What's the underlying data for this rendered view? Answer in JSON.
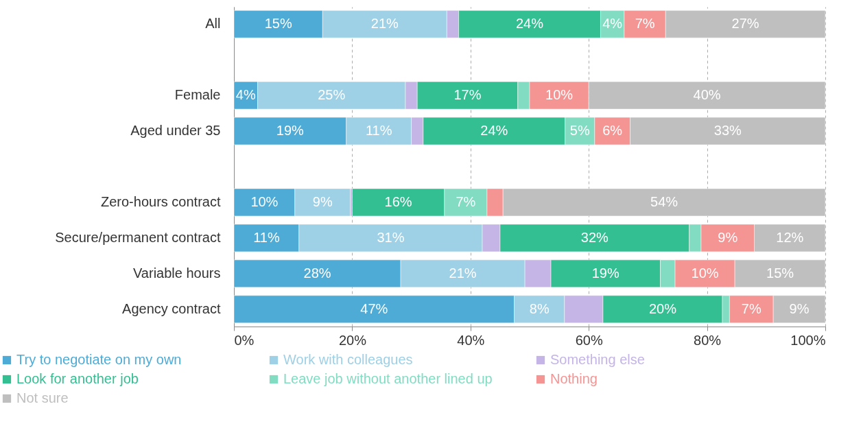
{
  "chart_data": {
    "type": "bar",
    "orientation": "horizontal",
    "stacked": true,
    "categories": [
      "All",
      null,
      "Female",
      "Aged under 35",
      null,
      "Zero-hours contract",
      "Secure/permanent contract",
      "Variable hours",
      "Agency contract"
    ],
    "series": [
      {
        "name": "Try to negotiate on my own",
        "color": "#4eabd6",
        "values": [
          15,
          null,
          4,
          19,
          null,
          10.3,
          11,
          28.2,
          47.4
        ],
        "value_labels": [
          "15%",
          null,
          "4%",
          "19%",
          null,
          "10%",
          "11%",
          "28%",
          "47%"
        ]
      },
      {
        "name": "Work with colleagues",
        "color": "#9ed0e6",
        "values": [
          21,
          null,
          25,
          11,
          null,
          9.4,
          31,
          21,
          8.5
        ],
        "value_labels": [
          "21%",
          null,
          "25%",
          "11%",
          null,
          "9%",
          "31%",
          "21%",
          "8%"
        ]
      },
      {
        "name": "Something else",
        "color": "#c4b5e6",
        "values": [
          2,
          null,
          2,
          2,
          null,
          0.3,
          3,
          4.4,
          6.5
        ],
        "value_labels": [
          null,
          null,
          null,
          null,
          null,
          null,
          null,
          null,
          null
        ]
      },
      {
        "name": "Look for another job",
        "color": "#33bf92",
        "values": [
          24,
          null,
          17,
          24,
          null,
          15.6,
          32,
          18.5,
          20.2
        ],
        "value_labels": [
          "24%",
          null,
          "17%",
          "24%",
          null,
          "16%",
          "32%",
          "19%",
          "20%"
        ]
      },
      {
        "name": "Leave job without another lined up",
        "color": "#82dcc2",
        "values": [
          4,
          null,
          2,
          5,
          null,
          7.2,
          2,
          2.5,
          1.2
        ],
        "value_labels": [
          "4%",
          null,
          null,
          "5%",
          null,
          "7%",
          null,
          null,
          null
        ]
      },
      {
        "name": "Nothing",
        "color": "#f49594",
        "values": [
          7,
          null,
          10,
          6,
          null,
          2.7,
          9,
          10.1,
          7.4
        ],
        "value_labels": [
          "7%",
          null,
          "10%",
          "6%",
          null,
          null,
          "9%",
          "10%",
          "7%"
        ]
      },
      {
        "name": "Not sure",
        "color": "#bfbfbf",
        "values": [
          27,
          null,
          40,
          33,
          null,
          54.5,
          12,
          15.3,
          8.8
        ],
        "value_labels": [
          "27%",
          null,
          "40%",
          "33%",
          null,
          "54%",
          "12%",
          "15%",
          "9%"
        ]
      }
    ],
    "xlim": [
      0,
      100
    ],
    "xticks": [
      {
        "value": 0,
        "label": "0%"
      },
      {
        "value": 20,
        "label": "20%"
      },
      {
        "value": 40,
        "label": "40%"
      },
      {
        "value": 60,
        "label": "60%"
      },
      {
        "value": 80,
        "label": "80%"
      },
      {
        "value": 100,
        "label": "100%"
      }
    ],
    "grid": "x",
    "legend": "bottom"
  }
}
